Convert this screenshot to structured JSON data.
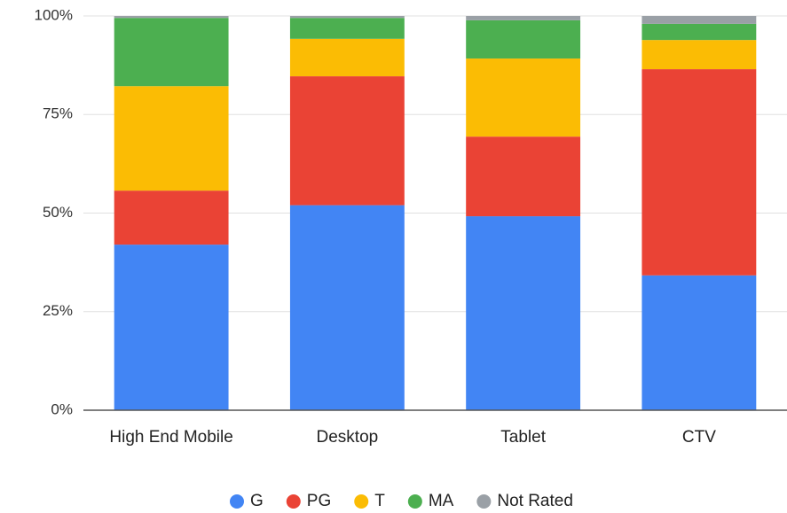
{
  "chart_data": {
    "type": "bar",
    "stacked": true,
    "categories": [
      "High End Mobile",
      "Desktop",
      "Tablet",
      "CTV"
    ],
    "series": [
      {
        "name": "G",
        "color": "#4285f4",
        "values": [
          42,
          52,
          49.2,
          34.2
        ]
      },
      {
        "name": "PG",
        "color": "#ea4335",
        "values": [
          13.7,
          32.7,
          20.2,
          52.3
        ]
      },
      {
        "name": "T",
        "color": "#fbbc04",
        "values": [
          26.5,
          9.5,
          19.8,
          7.4
        ]
      },
      {
        "name": "MA",
        "color": "#4caf50",
        "values": [
          17.3,
          5.3,
          9.7,
          4.1
        ]
      },
      {
        "name": "Not Rated",
        "color": "#9aa0a6",
        "values": [
          0.5,
          0.5,
          1.1,
          2.0
        ]
      }
    ],
    "ylim": [
      0,
      100
    ],
    "yticks": [
      {
        "value": 0,
        "label": "0%"
      },
      {
        "value": 25,
        "label": "25%"
      },
      {
        "value": 50,
        "label": "50%"
      },
      {
        "value": 75,
        "label": "75%"
      },
      {
        "value": 100,
        "label": "100%"
      }
    ],
    "grid": true,
    "legend": "bottom"
  }
}
